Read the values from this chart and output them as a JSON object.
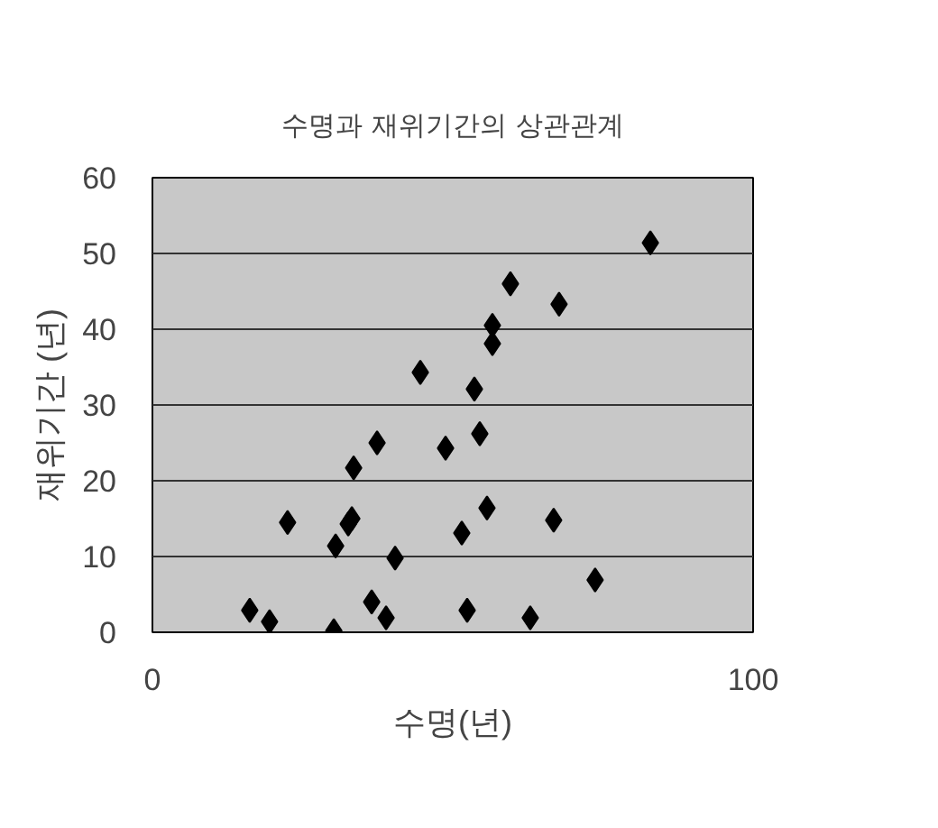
{
  "chart_data": {
    "type": "scatter",
    "title": "수명과 재위기간의 상관관계",
    "xlabel": "수명(년)",
    "ylabel": "재위기간 (년)",
    "x": [
      44.6,
      37.4,
      48.8,
      33.5,
      22.5,
      33.2,
      32.6,
      30.5,
      40.4,
      51.5,
      16.2,
      19.5,
      30.2,
      36.5,
      38.9,
      52.4,
      82.9,
      59.6,
      67.7,
      56.6,
      56.6,
      53.6,
      54.5,
      55.7,
      66.8,
      73.7,
      62.9
    ],
    "values": [
      34.3,
      25.0,
      24.3,
      21.7,
      14.5,
      15.0,
      14.3,
      11.4,
      9.8,
      13.1,
      2.9,
      1.4,
      0.2,
      4.0,
      1.9,
      2.9,
      51.4,
      46.0,
      43.3,
      40.5,
      38.1,
      32.1,
      26.2,
      16.4,
      14.8,
      6.9,
      1.9
    ],
    "color": "#000000",
    "marker": "diamond",
    "xlim": [
      0,
      100
    ],
    "ylim": [
      0,
      60
    ],
    "xticks": [
      0,
      100
    ],
    "yticks": [
      0,
      10,
      20,
      30,
      40,
      50,
      60
    ],
    "grid": "y"
  }
}
